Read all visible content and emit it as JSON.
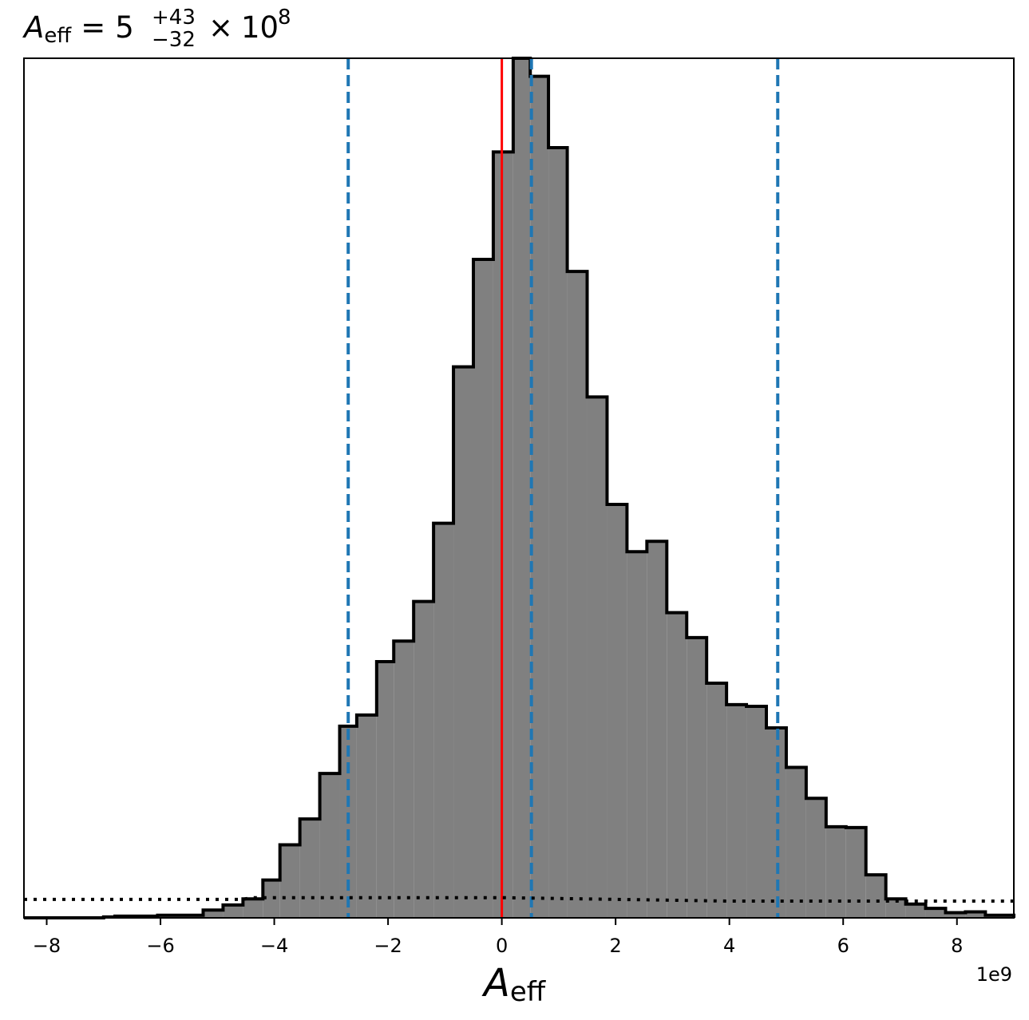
{
  "chart_data": {
    "type": "histogram",
    "title": {
      "symbol": "A",
      "subscript": "eff",
      "equals": "=",
      "median": "5",
      "plus": "+43",
      "minus": "−32",
      "times": "×",
      "base": "10",
      "exponent": "8"
    },
    "xlabel": {
      "symbol": "A",
      "subscript": "eff"
    },
    "offset_label": "1e9",
    "xlim": [
      -8400000000.0,
      9000000000.0
    ],
    "ylim": [
      0,
      1.0
    ],
    "grid": false,
    "xticks": [
      -8000000000.0,
      -6000000000.0,
      -4000000000.0,
      -2000000000.0,
      0,
      2000000000.0,
      4000000000.0,
      6000000000.0,
      8000000000.0
    ],
    "xtick_labels": [
      "−8",
      "−6",
      "−4",
      "−2",
      "0",
      "2",
      "4",
      "6",
      "8"
    ],
    "bin_edges": [
      -8400000000.0,
      -7000000000.0,
      -6800000000.0,
      -6050000000.0,
      -5250000000.0,
      -4900000000.0,
      -4550000000.0,
      -4200000000.0,
      -3900000000.0,
      -3550000000.0,
      -3200000000.0,
      -2850000000.0,
      -2550000000.0,
      -2200000000.0,
      -1900000000.0,
      -1550000000.0,
      -1200000000.0,
      -850000000.0,
      -500000000.0,
      -150000000.0,
      200000000.0,
      500000000.0,
      820000000.0,
      1150000000.0,
      1500000000.0,
      1850000000.0,
      2200000000.0,
      2550000000.0,
      2900000000.0,
      3250000000.0,
      3600000000.0,
      3950000000.0,
      4300000000.0,
      4650000000.0,
      5000000000.0,
      5350000000.0,
      5700000000.0,
      6050000000.0,
      6400000000.0,
      6750000000.0,
      7100000000.0,
      7450000000.0,
      7800000000.0,
      8150000000.0,
      8500000000.0,
      9000000000.0
    ],
    "counts": [
      0.0,
      0.001,
      0.002,
      0.003,
      0.009,
      0.015,
      0.022,
      0.044,
      0.085,
      0.115,
      0.168,
      0.223,
      0.236,
      0.298,
      0.322,
      0.368,
      0.459,
      0.641,
      0.766,
      0.891,
      1.0,
      0.979,
      0.896,
      0.752,
      0.606,
      0.481,
      0.426,
      0.438,
      0.355,
      0.326,
      0.273,
      0.248,
      0.246,
      0.221,
      0.175,
      0.139,
      0.106,
      0.105,
      0.05,
      0.022,
      0.016,
      0.011,
      0.006,
      0.007,
      0.003
    ],
    "fill_color": "#808080",
    "edge_color": "#000000",
    "vlines": [
      {
        "x": 0,
        "color": "#ff0000",
        "style": "solid"
      },
      {
        "x": -2700000000.0,
        "color": "#1f77b4",
        "style": "dashed"
      },
      {
        "x": 520000000.0,
        "color": "#1f77b4",
        "style": "dashed"
      },
      {
        "x": 4850000000.0,
        "color": "#1f77b4",
        "style": "dashed"
      }
    ],
    "prior_line": {
      "color": "#000000",
      "style": "dotted",
      "x": [
        -8400000000.0,
        -4550000000.0,
        -4400000000.0,
        0,
        4000000000.0,
        9000000000.0
      ],
      "y": [
        0.0215,
        0.0215,
        0.0235,
        0.0235,
        0.0195,
        0.0195
      ]
    }
  }
}
